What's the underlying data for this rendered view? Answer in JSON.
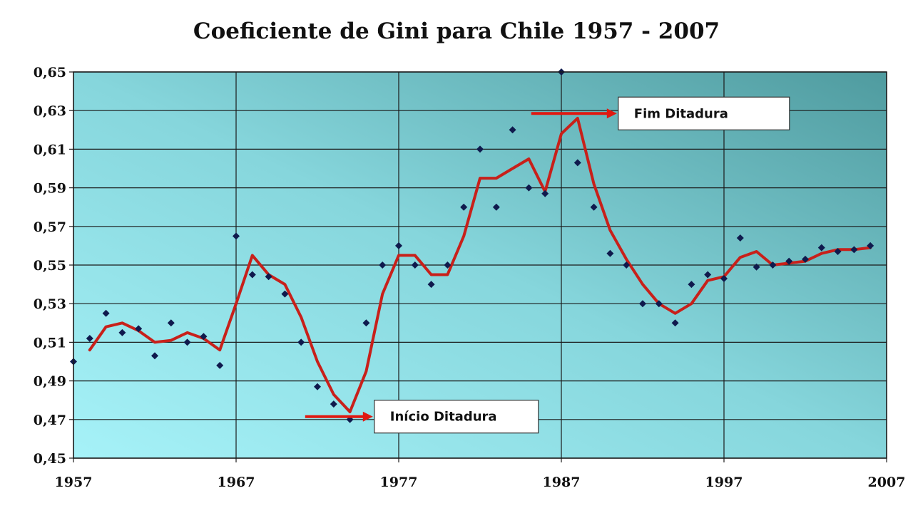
{
  "chart_data": {
    "type": "scatter",
    "title": "Coeficiente de Gini para Chile 1957 - 2007",
    "xlabel": "",
    "ylabel": "",
    "xlim": [
      1957,
      2007
    ],
    "ylim": [
      0.45,
      0.65
    ],
    "x_ticks": [
      1957,
      1967,
      1977,
      1987,
      1997,
      2007
    ],
    "y_tick_labels": [
      "0,65",
      "0,63",
      "0,61",
      "0,59",
      "0,57",
      "0,55",
      "0,53",
      "0,51",
      "0,49",
      "0,47",
      "0,45"
    ],
    "y_ticks": [
      0.65,
      0.63,
      0.61,
      0.59,
      0.57,
      0.55,
      0.53,
      0.51,
      0.49,
      0.47,
      0.45
    ],
    "grid": true,
    "series": [
      {
        "kind": "points",
        "color": "#0f1a4d",
        "points": [
          [
            1957,
            0.5
          ],
          [
            1958,
            0.512
          ],
          [
            1959,
            0.525
          ],
          [
            1960,
            0.515
          ],
          [
            1961,
            0.517
          ],
          [
            1962,
            0.503
          ],
          [
            1963,
            0.52
          ],
          [
            1964,
            0.51
          ],
          [
            1965,
            0.513
          ],
          [
            1966,
            0.498
          ],
          [
            1967,
            0.565
          ],
          [
            1968,
            0.545
          ],
          [
            1969,
            0.544
          ],
          [
            1970,
            0.535
          ],
          [
            1971,
            0.51
          ],
          [
            1972,
            0.487
          ],
          [
            1973,
            0.478
          ],
          [
            1974,
            0.47
          ],
          [
            1975,
            0.52
          ],
          [
            1976,
            0.55
          ],
          [
            1977,
            0.56
          ],
          [
            1978,
            0.55
          ],
          [
            1979,
            0.54
          ],
          [
            1980,
            0.55
          ],
          [
            1981,
            0.58
          ],
          [
            1982,
            0.61
          ],
          [
            1983,
            0.58
          ],
          [
            1984,
            0.62
          ],
          [
            1985,
            0.59
          ],
          [
            1986,
            0.587
          ],
          [
            1987,
            0.65
          ],
          [
            1988,
            0.603
          ],
          [
            1989,
            0.58
          ],
          [
            1990,
            0.556
          ],
          [
            1991,
            0.55
          ],
          [
            1992,
            0.53
          ],
          [
            1993,
            0.53
          ],
          [
            1994,
            0.52
          ],
          [
            1995,
            0.54
          ],
          [
            1996,
            0.545
          ],
          [
            1997,
            0.543
          ],
          [
            1998,
            0.564
          ],
          [
            1999,
            0.549
          ],
          [
            2000,
            0.55
          ],
          [
            2001,
            0.552
          ],
          [
            2002,
            0.553
          ],
          [
            2003,
            0.559
          ],
          [
            2004,
            0.557
          ],
          [
            2005,
            0.558
          ],
          [
            2006,
            0.56
          ]
        ]
      },
      {
        "kind": "line",
        "color": "#c8201a",
        "points": [
          [
            1958,
            0.506
          ],
          [
            1959,
            0.518
          ],
          [
            1960,
            0.52
          ],
          [
            1961,
            0.516
          ],
          [
            1962,
            0.51
          ],
          [
            1963,
            0.511
          ],
          [
            1964,
            0.515
          ],
          [
            1965,
            0.512
          ],
          [
            1966,
            0.506
          ],
          [
            1967,
            0.53
          ],
          [
            1968,
            0.555
          ],
          [
            1969,
            0.545
          ],
          [
            1970,
            0.54
          ],
          [
            1971,
            0.523
          ],
          [
            1972,
            0.5
          ],
          [
            1973,
            0.483
          ],
          [
            1974,
            0.474
          ],
          [
            1975,
            0.495
          ],
          [
            1976,
            0.535
          ],
          [
            1977,
            0.555
          ],
          [
            1978,
            0.555
          ],
          [
            1979,
            0.545
          ],
          [
            1980,
            0.545
          ],
          [
            1981,
            0.565
          ],
          [
            1982,
            0.595
          ],
          [
            1983,
            0.595
          ],
          [
            1984,
            0.6
          ],
          [
            1985,
            0.605
          ],
          [
            1986,
            0.588
          ],
          [
            1987,
            0.618
          ],
          [
            1988,
            0.626
          ],
          [
            1989,
            0.592
          ],
          [
            1990,
            0.568
          ],
          [
            1991,
            0.553
          ],
          [
            1992,
            0.54
          ],
          [
            1993,
            0.53
          ],
          [
            1994,
            0.525
          ],
          [
            1995,
            0.53
          ],
          [
            1996,
            0.542
          ],
          [
            1997,
            0.544
          ],
          [
            1998,
            0.554
          ],
          [
            1999,
            0.557
          ],
          [
            2000,
            0.55
          ],
          [
            2001,
            0.551
          ],
          [
            2002,
            0.552
          ],
          [
            2003,
            0.556
          ],
          [
            2004,
            0.558
          ],
          [
            2005,
            0.558
          ],
          [
            2006,
            0.559
          ]
        ]
      }
    ],
    "annotations": [
      {
        "text": "Início Ditadura",
        "x": 1975.5,
        "y": 0.4715,
        "arrow_color": "#e01810"
      },
      {
        "text": "Fim Ditadura",
        "x": 1990.5,
        "y": 0.6285,
        "arrow_color": "#e01810"
      }
    ],
    "background_gradient": [
      "#a6f2f8",
      "#76c2c6",
      "#4f9b9f"
    ]
  }
}
